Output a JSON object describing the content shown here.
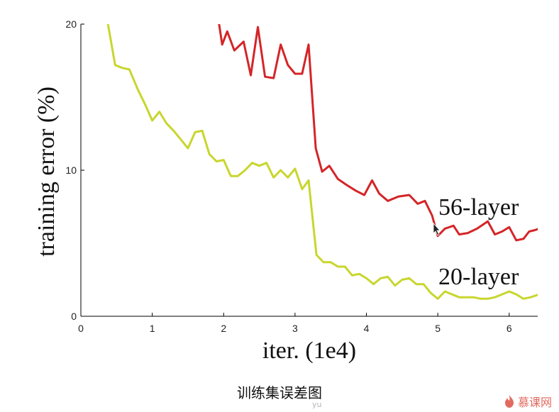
{
  "chart_data": {
    "type": "line",
    "title": "",
    "xlabel": "iter. (1e4)",
    "ylabel": "training error (%)",
    "xlim": [
      0,
      6.4
    ],
    "ylim": [
      0,
      20
    ],
    "xticks": [
      "0",
      "1",
      "2",
      "3",
      "4",
      "5",
      "6"
    ],
    "yticks": [
      "0",
      "10",
      "20"
    ],
    "grid": false,
    "series": [
      {
        "name": "56-layer",
        "color": "#d42528",
        "x": [
          1.93,
          1.98,
          2.05,
          2.15,
          2.28,
          2.38,
          2.48,
          2.58,
          2.7,
          2.8,
          2.9,
          3.0,
          3.1,
          3.19,
          3.29,
          3.38,
          3.48,
          3.6,
          3.72,
          3.85,
          3.97,
          4.08,
          4.18,
          4.3,
          4.45,
          4.6,
          4.72,
          4.82,
          4.92,
          5.0,
          5.1,
          5.22,
          5.3,
          5.42,
          5.55,
          5.7,
          5.8,
          5.9,
          6.0,
          6.1,
          6.2,
          6.28,
          6.36,
          6.42
        ],
        "y": [
          20.2,
          18.6,
          19.5,
          18.2,
          18.8,
          16.5,
          19.8,
          16.4,
          16.3,
          18.6,
          17.2,
          16.6,
          16.6,
          18.6,
          11.5,
          9.9,
          10.3,
          9.4,
          9.0,
          8.6,
          8.3,
          9.3,
          8.4,
          7.9,
          8.2,
          8.3,
          7.7,
          7.9,
          6.9,
          5.5,
          6.0,
          6.2,
          5.6,
          5.7,
          6.0,
          6.5,
          5.6,
          5.8,
          6.1,
          5.2,
          5.3,
          5.8,
          5.9,
          6.0
        ]
      },
      {
        "name": "20-layer",
        "color": "#c8d62e",
        "x": [
          0.38,
          0.48,
          0.58,
          0.68,
          0.8,
          0.9,
          1.0,
          1.1,
          1.2,
          1.3,
          1.4,
          1.5,
          1.6,
          1.7,
          1.8,
          1.9,
          2.0,
          2.1,
          2.2,
          2.3,
          2.4,
          2.5,
          2.6,
          2.7,
          2.8,
          2.9,
          3.0,
          3.1,
          3.19,
          3.3,
          3.4,
          3.5,
          3.6,
          3.7,
          3.8,
          3.9,
          4.0,
          4.1,
          4.2,
          4.3,
          4.4,
          4.5,
          4.6,
          4.7,
          4.8,
          4.9,
          5.0,
          5.1,
          5.2,
          5.3,
          5.4,
          5.5,
          5.6,
          5.7,
          5.8,
          5.9,
          6.0,
          6.1,
          6.2,
          6.3,
          6.42
        ],
        "y": [
          20.0,
          17.2,
          17.0,
          16.9,
          15.5,
          14.5,
          13.4,
          14.0,
          13.2,
          12.7,
          12.1,
          11.5,
          12.6,
          12.7,
          11.1,
          10.6,
          10.7,
          9.6,
          9.6,
          10.0,
          10.5,
          10.3,
          10.5,
          9.5,
          10.0,
          9.5,
          10.1,
          8.7,
          9.3,
          4.2,
          3.7,
          3.7,
          3.4,
          3.4,
          2.8,
          2.9,
          2.6,
          2.2,
          2.6,
          2.7,
          2.1,
          2.5,
          2.6,
          2.2,
          2.2,
          1.6,
          1.2,
          1.7,
          1.5,
          1.3,
          1.3,
          1.3,
          1.2,
          1.2,
          1.3,
          1.5,
          1.7,
          1.5,
          1.2,
          1.3,
          1.5
        ]
      }
    ],
    "annotations": [
      "56-layer",
      "20-layer"
    ]
  },
  "caption": "训练集误差图",
  "watermark": "yu",
  "logo_text": "慕课网"
}
